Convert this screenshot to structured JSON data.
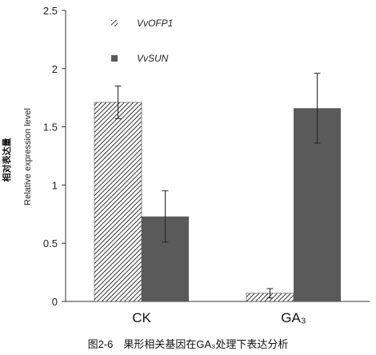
{
  "chart_data": {
    "type": "bar",
    "categories": [
      "CK",
      "GA₃"
    ],
    "series": [
      {
        "name": "VvOFP1",
        "values": [
          1.71,
          0.07
        ],
        "errors": [
          0.14,
          0.04
        ],
        "pattern": "hatched"
      },
      {
        "name": "VvSUN",
        "values": [
          0.73,
          1.66
        ],
        "errors": [
          0.22,
          0.3
        ],
        "color": "#5a5a5a"
      }
    ],
    "ylim": [
      0,
      2.5
    ],
    "yticks": [
      0,
      0.5,
      1,
      1.5,
      2,
      2.5
    ],
    "ytick_labels": [
      "0",
      "0.5",
      "1",
      "1.5",
      "2",
      "2.5"
    ],
    "ylabel_cn": "相对表达量",
    "ylabel": "Relative expression level",
    "xlabel": "",
    "grid": false,
    "legend_position": "top-left",
    "caption": "图2-6　果形相关基因在GA₃处理下表达分析"
  }
}
